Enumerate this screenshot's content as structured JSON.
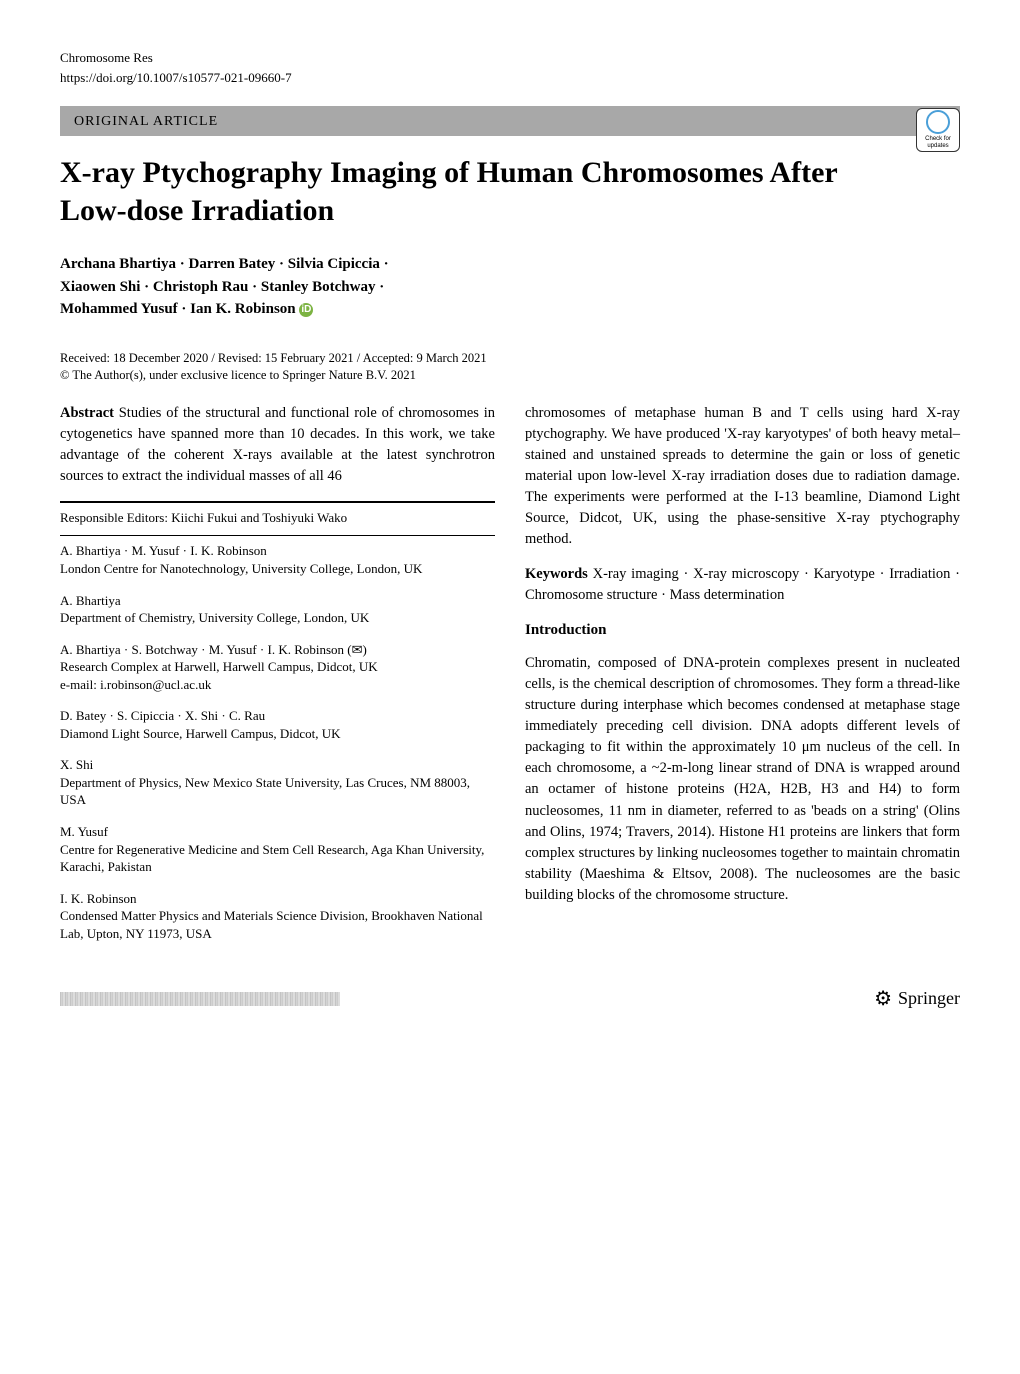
{
  "header": {
    "journal": "Chromosome Res",
    "doi": "https://doi.org/10.1007/s10577-021-09660-7",
    "article_type": "ORIGINAL ARTICLE",
    "check_updates_label": "Check for updates"
  },
  "title": "X-ray Ptychography Imaging of Human Chromosomes After Low-dose Irradiation",
  "authors_line1": "Archana Bhartiya · Darren Batey · Silvia Cipiccia ·",
  "authors_line2": "Xiaowen Shi · Christoph Rau · Stanley Botchway ·",
  "authors_line3": "Mohammed Yusuf · Ian K. Robinson",
  "orcid_symbol": "iD",
  "dates": "Received: 18 December 2020 / Revised: 15 February 2021 / Accepted: 9 March 2021",
  "copyright": "© The Author(s), under exclusive licence to Springer Nature B.V. 2021",
  "abstract": {
    "label": "Abstract",
    "left_text": " Studies of the structural and functional role of chromosomes in cytogenetics have spanned more than 10 decades. In this work, we take advantage of the coherent X-rays available at the latest synchrotron sources to extract the individual masses of all 46",
    "right_text": "chromosomes of metaphase human B and T cells using hard X-ray ptychography. We have produced 'X-ray karyotypes' of both heavy metal–stained and unstained spreads to determine the gain or loss of genetic material upon low-level X-ray irradiation doses due to radiation damage. The experiments were performed at the I-13 beamline, Diamond Light Source, Didcot, UK, using the phase-sensitive X-ray ptychography method."
  },
  "keywords": {
    "label": "Keywords",
    "text": " X-ray imaging · X-ray microscopy · Karyotype · Irradiation · Chromosome structure · Mass determination"
  },
  "introduction": {
    "heading": "Introduction",
    "text": "Chromatin, composed of DNA-protein complexes present in nucleated cells, is the chemical description of chromosomes. They form a thread-like structure during interphase which becomes condensed at metaphase stage immediately preceding cell division. DNA adopts different levels of packaging to fit within the approximately 10 μm nucleus of the cell. In each chromosome, a ~2-m-long linear strand of DNA is wrapped around an octamer of histone proteins (H2A, H2B, H3 and H4) to form nucleosomes, 11 nm in diameter, referred to as 'beads on a string' (Olins and Olins, 1974; Travers, 2014). Histone H1 proteins are linkers that form complex structures by linking nucleosomes together to maintain chromatin stability (Maeshima & Eltsov, 2008). The nucleosomes are the basic building blocks of the chromosome structure."
  },
  "editors_note": "Responsible Editors: Kiichi Fukui and Toshiyuki Wako",
  "affiliations": [
    {
      "authors": "A. Bhartiya · M. Yusuf · I. K. Robinson",
      "text": "London Centre for Nanotechnology, University College, London, UK"
    },
    {
      "authors": "A. Bhartiya",
      "text": "Department of Chemistry, University College, London, UK"
    },
    {
      "authors": "A. Bhartiya · S. Botchway · M. Yusuf · I. K. Robinson (✉)",
      "text": "Research Complex at Harwell, Harwell Campus, Didcot, UK",
      "email": "e-mail: i.robinson@ucl.ac.uk"
    },
    {
      "authors": "D. Batey · S. Cipiccia · X. Shi · C. Rau",
      "text": "Diamond Light Source, Harwell Campus, Didcot, UK"
    },
    {
      "authors": "X. Shi",
      "text": "Department of Physics, New Mexico State University, Las Cruces, NM 88003, USA"
    },
    {
      "authors": "M. Yusuf",
      "text": "Centre for Regenerative Medicine and Stem Cell Research, Aga Khan University, Karachi, Pakistan"
    },
    {
      "authors": "I. K. Robinson",
      "text": "Condensed Matter Physics and Materials Science Division, Brookhaven National Lab, Upton, NY 11973, USA"
    }
  ],
  "footer": {
    "publisher": "Springer",
    "icon": "⚙"
  }
}
